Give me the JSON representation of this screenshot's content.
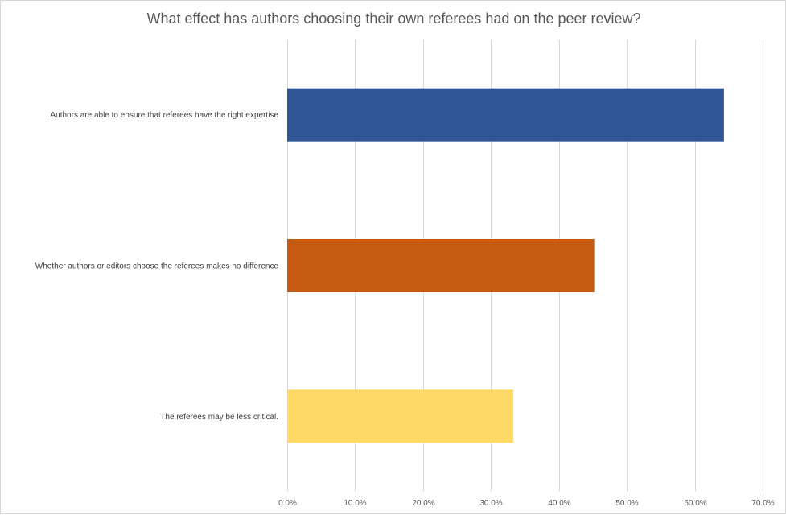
{
  "chart_data": {
    "type": "bar",
    "orientation": "horizontal",
    "title": "What effect has authors choosing their own referees had on the peer review?",
    "categories": [
      "Authors are able to ensure that referees have the right expertise",
      "Whether authors or editors choose the referees makes no difference",
      "The referees may be less critical."
    ],
    "values": [
      0.643,
      0.452,
      0.333
    ],
    "colors": [
      "#2F5597",
      "#C55A11",
      "#FFD966"
    ],
    "xlim": [
      0,
      0.7
    ],
    "xticks": [
      "0.0%",
      "10.0%",
      "20.0%",
      "30.0%",
      "40.0%",
      "50.0%",
      "60.0%",
      "70.0%"
    ],
    "grid": true,
    "legend": "none"
  }
}
